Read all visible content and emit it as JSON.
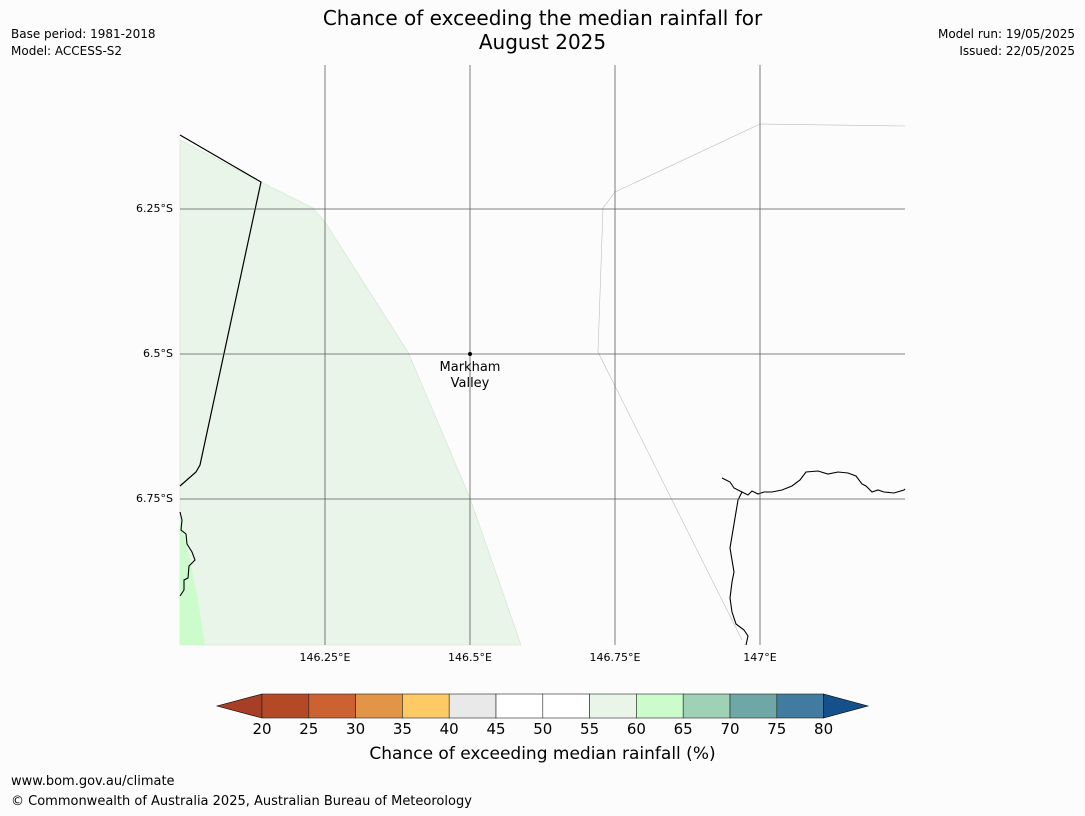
{
  "title_line1": "Chance of exceeding the median rainfall for",
  "title_line2": "August 2025",
  "meta_left": {
    "base_period": "Base period: 1981-2018",
    "model": "Model: ACCESS-S2"
  },
  "meta_right": {
    "model_run": "Model run: 19/05/2025",
    "issued": "Issued: 22/05/2025"
  },
  "map": {
    "lat_labels": [
      "6.25°S",
      "6.5°S",
      "6.75°S"
    ],
    "lon_labels": [
      "146.25°E",
      "146.5°E",
      "146.75°E",
      "147°E"
    ],
    "location": {
      "name_line1": "Markham",
      "name_line2": "Valley"
    },
    "colors": {
      "band_55_60": "#e9f5e9",
      "band_60_65": "#ccfccc"
    }
  },
  "colorbar": {
    "ticks": [
      "20",
      "25",
      "30",
      "35",
      "40",
      "45",
      "50",
      "55",
      "60",
      "65",
      "70",
      "75",
      "80"
    ],
    "colors": [
      "#a63f26",
      "#b34a25",
      "#cc6231",
      "#e29546",
      "#fdca66",
      "#e9e9e9",
      "#ffffff",
      "#ffffff",
      "#e9f5e9",
      "#ccfccc",
      "#9fd1b6",
      "#6fa6a6",
      "#417b9f",
      "#154f8c"
    ],
    "label": "Chance of exceeding median rainfall (%)"
  },
  "footer": {
    "url": "www.bom.gov.au/climate",
    "copyright": "© Commonwealth of Australia 2025, Australian Bureau of Meteorology"
  }
}
